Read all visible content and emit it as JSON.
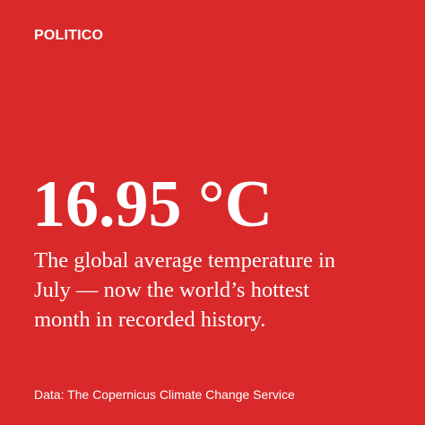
{
  "brand": "POLITICO",
  "headline": "16.95 °C",
  "description": [
    "The global average temperature in",
    "July — now the world’s hottest",
    "month in recorded history."
  ],
  "source": "Data: The Copernicus Climate Change Service"
}
